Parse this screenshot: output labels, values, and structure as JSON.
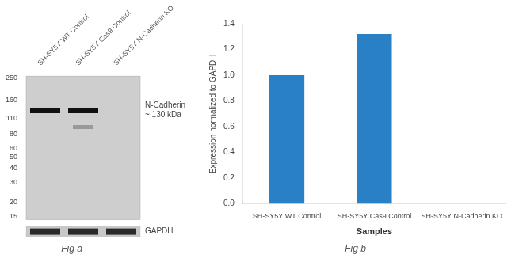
{
  "chart_data": [
    {
      "type": "blot",
      "title": "Fig a",
      "categories": [
        "SH-SY5Y WT Control",
        "SH-SY5Y Cas9 Control",
        "SH-SY5Y N-Cadherin KO"
      ],
      "log": "y",
      "ylim": [
        14,
        260
      ],
      "yticks": [
        250,
        160,
        110,
        80,
        60,
        50,
        40,
        30,
        20,
        15
      ],
      "grid": false,
      "series": [
        {
          "color": "#111111",
          "values": [
            130,
            130,
            null
          ]
        },
        {
          "color": "#999999",
          "values": [
            null,
            92,
            null
          ]
        }
      ],
      "annotations": [
        "N-Cadherin\n~ 130 kDa",
        "GAPDH"
      ]
    },
    {
      "type": "bar",
      "title": "Fig b",
      "categories": [
        "SH-SY5Y WT Control",
        "SH-SY5Y Cas9 Control",
        "SH-SY5Y N-Cadherin KO"
      ],
      "values": [
        1.0,
        1.32,
        0.0
      ],
      "color": "#2980C4",
      "xlabel": "Samples",
      "ylabel": "Expression normalized to GAPDH",
      "ylim": [
        0,
        1.4
      ],
      "yticks": [
        {
          "value": 0,
          "label": "0.0"
        },
        0.2,
        0.4,
        0.6,
        0.8,
        {
          "value": 1.0,
          "label": "1.0"
        },
        1.2,
        1.4
      ],
      "grid": false
    }
  ]
}
